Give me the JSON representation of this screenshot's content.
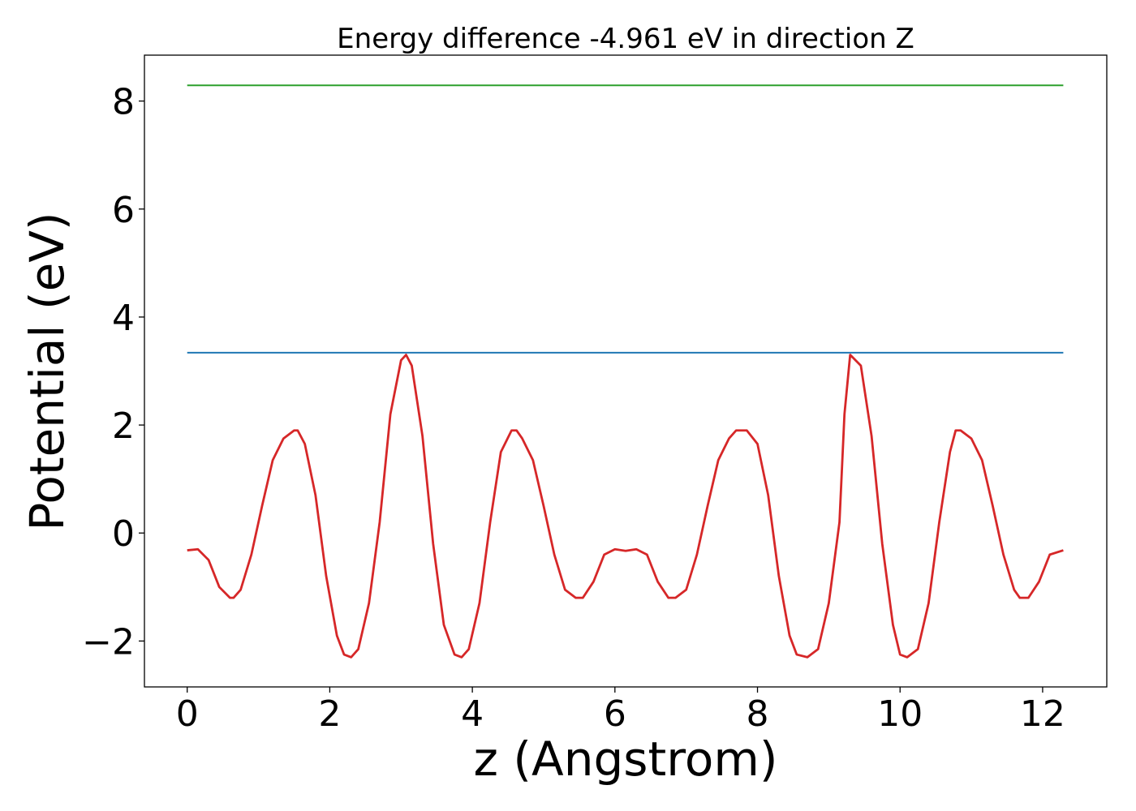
{
  "chart_data": {
    "type": "line",
    "title": "Energy difference -4.961 eV in direction Z",
    "xlabel": "z (Angstrom)",
    "ylabel": "Potential (eV)",
    "xlim": [
      -0.6,
      12.9
    ],
    "ylim": [
      -2.85,
      8.85
    ],
    "xticks": [
      0,
      2,
      4,
      6,
      8,
      10,
      12
    ],
    "yticks": [
      -2,
      0,
      2,
      4,
      6,
      8
    ],
    "xtick_labels": [
      "0",
      "2",
      "4",
      "6",
      "8",
      "10",
      "12"
    ],
    "ytick_labels": [
      "−2",
      "0",
      "2",
      "4",
      "6",
      "8"
    ],
    "grid": false,
    "series": [
      {
        "color": "#2ca02c",
        "style": "horizontal-line",
        "x": [
          0,
          12.29
        ],
        "y": [
          8.29,
          8.29
        ]
      },
      {
        "color": "#1f77b4",
        "style": "horizontal-line",
        "x": [
          0,
          12.29
        ],
        "y": [
          3.34,
          3.34
        ]
      },
      {
        "color": "#d62728",
        "style": "line",
        "x": [
          0.0,
          0.15,
          0.3,
          0.45,
          0.6,
          0.65,
          0.75,
          0.9,
          1.05,
          1.2,
          1.35,
          1.5,
          1.55,
          1.65,
          1.8,
          1.95,
          2.1,
          2.2,
          2.3,
          2.4,
          2.55,
          2.7,
          2.85,
          3.0,
          3.07,
          3.15,
          3.3,
          3.45,
          3.6,
          3.75,
          3.85,
          3.95,
          4.1,
          4.25,
          4.4,
          4.55,
          4.62,
          4.7,
          4.85,
          5.0,
          5.15,
          5.3,
          5.45,
          5.55,
          5.7,
          5.85,
          6.0,
          6.15,
          6.3,
          6.45,
          6.6,
          6.75,
          6.85,
          7.0,
          7.15,
          7.3,
          7.45,
          7.6,
          7.7,
          7.85,
          8.0,
          8.15,
          8.3,
          8.45,
          8.55,
          8.7,
          8.85,
          9.0,
          9.15,
          9.22,
          9.3,
          9.45,
          9.6,
          9.75,
          9.9,
          10.0,
          10.1,
          10.25,
          10.4,
          10.55,
          10.7,
          10.78,
          10.85,
          11.0,
          11.15,
          11.3,
          11.45,
          11.6,
          11.68,
          11.8,
          11.95,
          12.1,
          12.29
        ],
        "y": [
          -0.32,
          -0.3,
          -0.5,
          -1.0,
          -1.2,
          -1.2,
          -1.05,
          -0.4,
          0.5,
          1.35,
          1.75,
          1.9,
          1.9,
          1.65,
          0.7,
          -0.8,
          -1.9,
          -2.25,
          -2.3,
          -2.15,
          -1.3,
          0.2,
          2.2,
          3.2,
          3.3,
          3.1,
          1.8,
          -0.2,
          -1.7,
          -2.25,
          -2.3,
          -2.15,
          -1.3,
          0.2,
          1.5,
          1.9,
          1.9,
          1.75,
          1.35,
          0.5,
          -0.4,
          -1.05,
          -1.2,
          -1.2,
          -0.9,
          -0.4,
          -0.3,
          -0.33,
          -0.3,
          -0.4,
          -0.9,
          -1.2,
          -1.2,
          -1.05,
          -0.4,
          0.5,
          1.35,
          1.75,
          1.9,
          1.9,
          1.65,
          0.7,
          -0.8,
          -1.9,
          -2.25,
          -2.3,
          -2.15,
          -1.3,
          0.2,
          2.2,
          3.3,
          3.1,
          1.8,
          -0.2,
          -1.7,
          -2.25,
          -2.3,
          -2.15,
          -1.3,
          0.2,
          1.5,
          1.9,
          1.9,
          1.75,
          1.35,
          0.5,
          -0.4,
          -1.05,
          -1.2,
          -1.2,
          -0.9,
          -0.4,
          -0.32
        ]
      }
    ]
  }
}
